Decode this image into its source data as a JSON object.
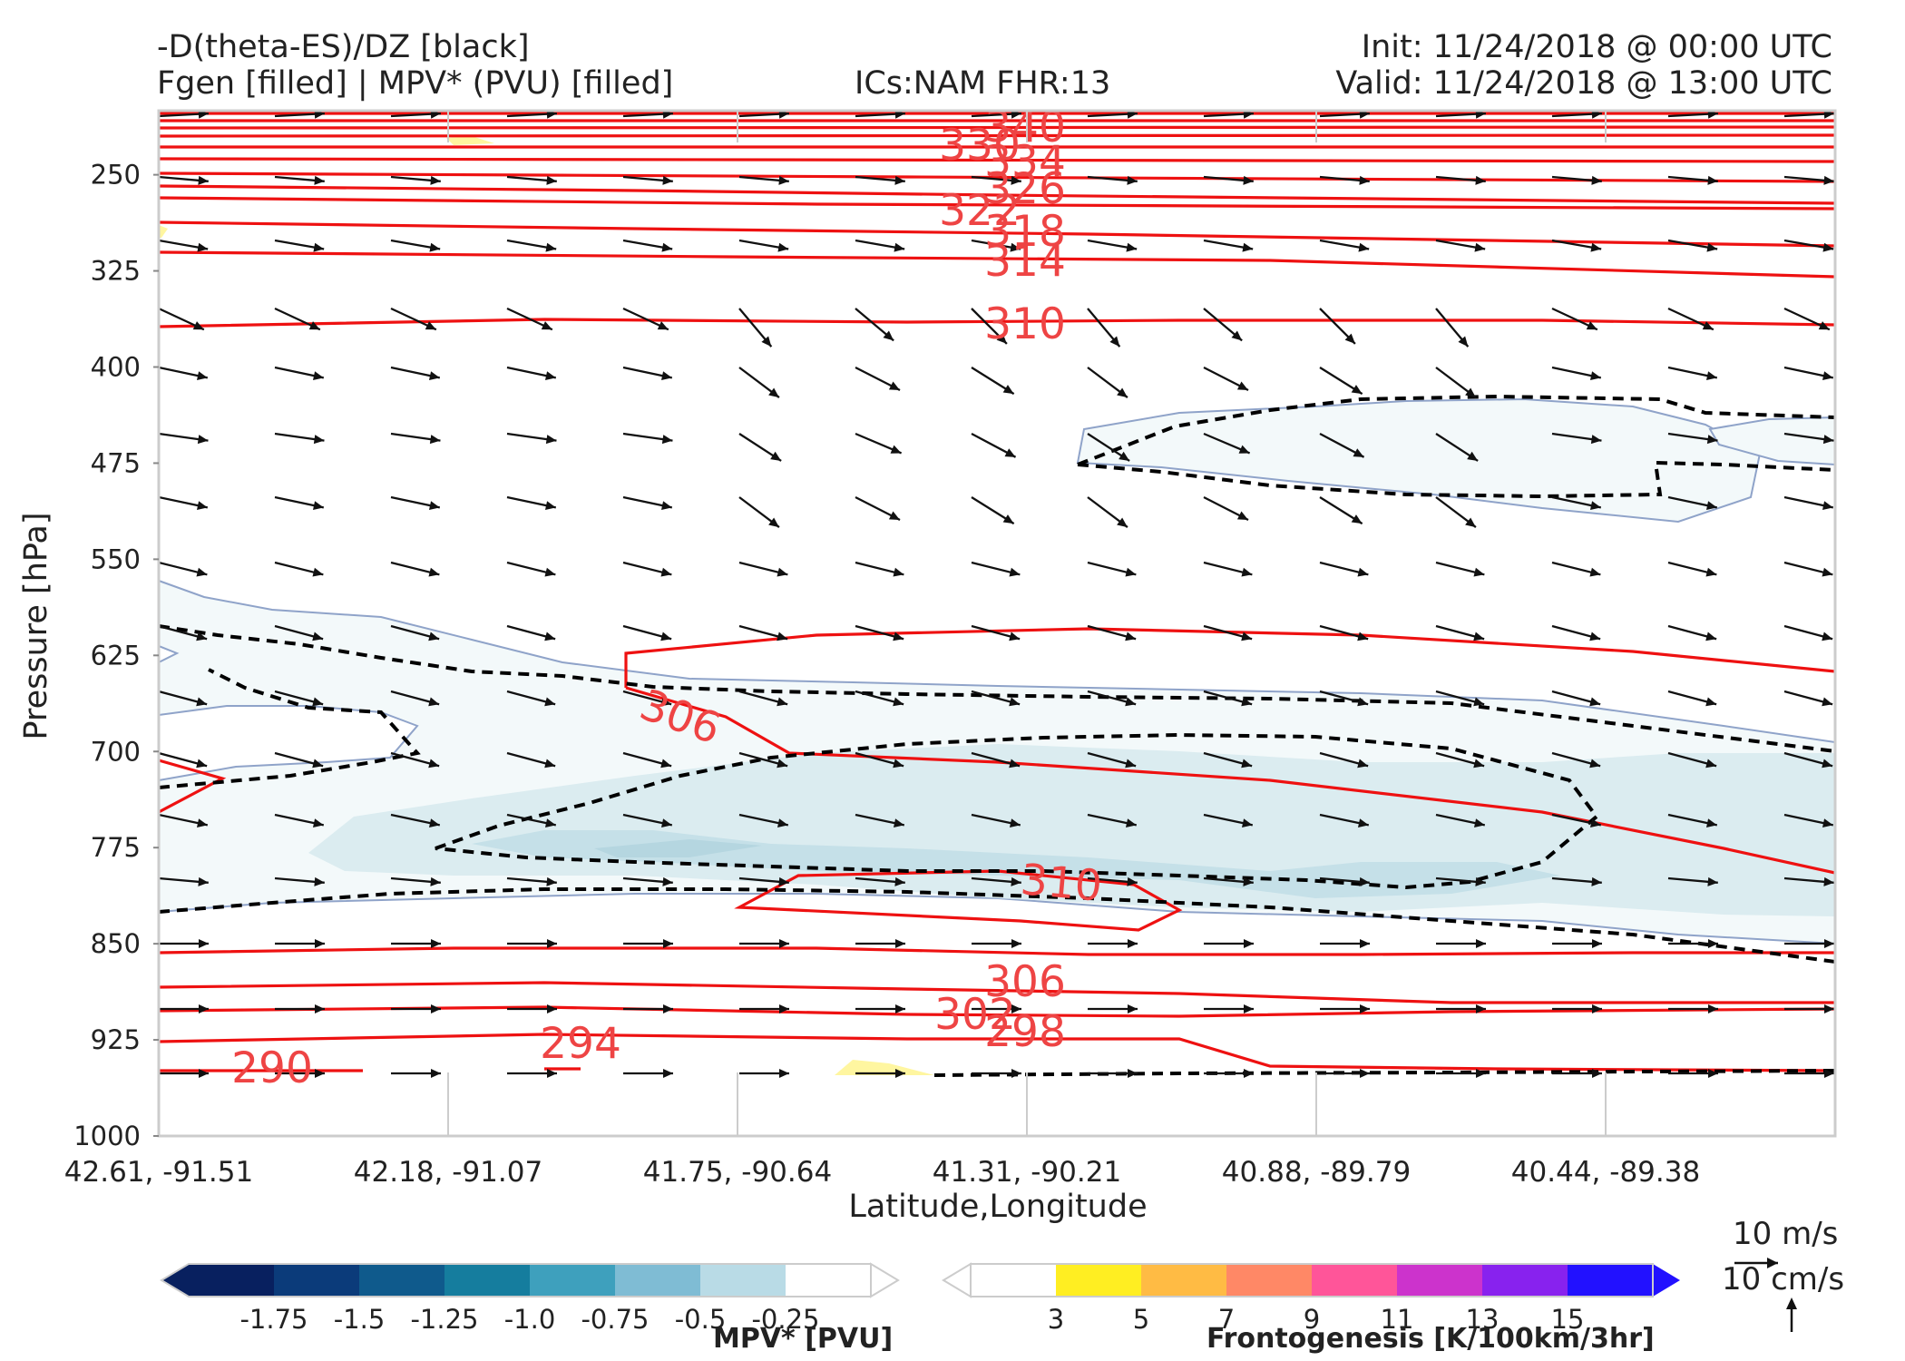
{
  "header": {
    "title_line1": "-D(theta-ES)/DZ [black]",
    "title_line2": "Fgen [filled] | MPV* (PVU) [filled]",
    "ics": "ICs:NAM FHR:13",
    "init": "Init: 11/24/2018 @ 00:00 UTC",
    "valid": "Valid: 11/24/2018 @ 13:00 UTC"
  },
  "chart_data": {
    "type": "cross-section",
    "xlabel": "Latitude,Longitude",
    "ylabel": "Pressure [hPa]",
    "x_ticks": [
      "42.61, -91.51",
      "42.18, -91.07",
      "41.75, -90.64",
      "41.31, -90.21",
      "40.88, -89.79",
      "40.44, -89.38"
    ],
    "y_ticks": [
      250,
      325,
      400,
      475,
      550,
      625,
      700,
      775,
      850,
      925,
      1000
    ],
    "ylim": [
      1000,
      200
    ],
    "theta_contours": [
      {
        "value": 290,
        "label": "290"
      },
      {
        "value": 294,
        "label": "294"
      },
      {
        "value": 298,
        "label": "298"
      },
      {
        "value": 302,
        "label": "302"
      },
      {
        "value": 306,
        "label": "306"
      },
      {
        "value": 306,
        "label": "306"
      },
      {
        "value": 310,
        "label": "310"
      },
      {
        "value": 310,
        "label": "310"
      },
      {
        "value": 314,
        "label": "314"
      },
      {
        "value": 318,
        "label": "318"
      },
      {
        "value": 322,
        "label": "322"
      },
      {
        "value": 326,
        "label": "326"
      },
      {
        "value": 330,
        "label": "330"
      },
      {
        "value": 334,
        "label": "334"
      },
      {
        "value": 340,
        "label": "340"
      }
    ],
    "colors": {
      "theta": "#ee1111",
      "theta_label": "#ee4444",
      "stability": "#000000",
      "mpv_light": "#f3f9fa",
      "mpv_mid": "#dbecf0",
      "mpv_dark": "#bcdbe4"
    },
    "mpv_colorbar": {
      "label": "MPV* [PVU]",
      "ticks": [
        "-1.75",
        "-1.5",
        "-1.25",
        "-1.0",
        "-0.75",
        "-0.5",
        "-0.25"
      ],
      "colors": [
        "#08205f",
        "#0b3b7a",
        "#0f5a8c",
        "#157d9e",
        "#3ea0bd",
        "#7fbcd4",
        "#b9dbe6",
        "#ffffff"
      ]
    },
    "fgen_colorbar": {
      "label": "Frontogenesis [K/100km/3hr]",
      "ticks": [
        "3",
        "5",
        "7",
        "9",
        "11",
        "13",
        "15"
      ],
      "colors": [
        "#ffffff",
        "#ffee22",
        "#ffbb44",
        "#ff8866",
        "#ff5599",
        "#cc33cc",
        "#8822ee",
        "#2211ff"
      ]
    },
    "legend": {
      "wind": "10 m/s",
      "vertical": "10 cm/s"
    }
  }
}
